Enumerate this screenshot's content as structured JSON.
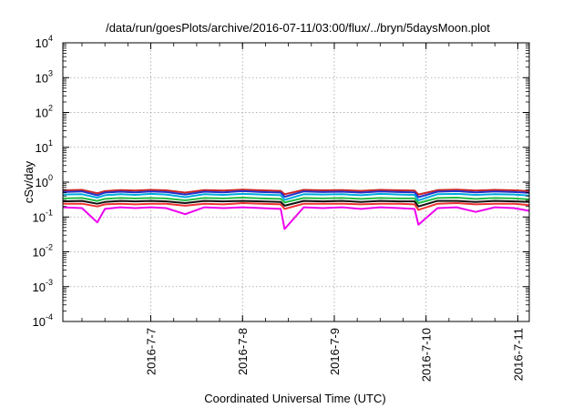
{
  "chart_data": {
    "type": "line",
    "title": "/data/run/goesPlots/archive/2016-07-11/03:00/flux/../bryn/5daysMoon.plot",
    "xlabel": "Coordinated Universal Time (UTC)",
    "ylabel": "cSv/day",
    "yscale": "log",
    "ylim": [
      0.0001,
      10000
    ],
    "xlim": [
      "2016-07-06T01:00",
      "2016-07-11T03:00"
    ],
    "grid": true,
    "y_ticks": [
      {
        "value": 0.0001,
        "base": "10",
        "exp": "-4"
      },
      {
        "value": 0.001,
        "base": "10",
        "exp": "-3"
      },
      {
        "value": 0.01,
        "base": "10",
        "exp": "-2"
      },
      {
        "value": 0.1,
        "base": "10",
        "exp": "-1"
      },
      {
        "value": 1,
        "base": "10",
        "exp": "0"
      },
      {
        "value": 10,
        "base": "10",
        "exp": "1"
      },
      {
        "value": 100,
        "base": "10",
        "exp": "2"
      },
      {
        "value": 1000,
        "base": "10",
        "exp": "3"
      },
      {
        "value": 10000,
        "base": "10",
        "exp": "4"
      }
    ],
    "x_ticks": [
      {
        "value": "2016-07-07T00:00",
        "label": "2016-7-7"
      },
      {
        "value": "2016-07-08T00:00",
        "label": "2016-7-8"
      },
      {
        "value": "2016-07-09T00:00",
        "label": "2016-7-9"
      },
      {
        "value": "2016-07-10T00:00",
        "label": "2016-7-10"
      },
      {
        "value": "2016-07-11T00:00",
        "label": "2016-7-11"
      }
    ],
    "x": [
      "2016-07-06T01:00",
      "2016-07-06T06:00",
      "2016-07-06T10:00",
      "2016-07-06T12:00",
      "2016-07-06T16:00",
      "2016-07-06T20:00",
      "2016-07-07T00:00",
      "2016-07-07T04:00",
      "2016-07-07T09:00",
      "2016-07-07T14:00",
      "2016-07-07T19:00",
      "2016-07-08T00:00",
      "2016-07-08T05:00",
      "2016-07-08T10:00",
      "2016-07-08T11:00",
      "2016-07-08T16:00",
      "2016-07-08T21:00",
      "2016-07-09T02:00",
      "2016-07-09T07:00",
      "2016-07-09T12:00",
      "2016-07-09T17:00",
      "2016-07-09T21:00",
      "2016-07-09T22:00",
      "2016-07-10T03:00",
      "2016-07-10T08:00",
      "2016-07-10T13:00",
      "2016-07-10T18:00",
      "2016-07-10T23:00",
      "2016-07-11T03:00"
    ],
    "series": [
      {
        "color": "#cc2222",
        "values": [
          0.58,
          0.6,
          0.48,
          0.55,
          0.59,
          0.57,
          0.6,
          0.58,
          0.5,
          0.59,
          0.57,
          0.61,
          0.58,
          0.56,
          0.45,
          0.6,
          0.58,
          0.59,
          0.56,
          0.6,
          0.58,
          0.57,
          0.44,
          0.59,
          0.61,
          0.57,
          0.6,
          0.58,
          0.55
        ]
      },
      {
        "color": "#2233cc",
        "values": [
          0.52,
          0.54,
          0.42,
          0.5,
          0.53,
          0.51,
          0.54,
          0.52,
          0.44,
          0.53,
          0.51,
          0.55,
          0.52,
          0.5,
          0.38,
          0.54,
          0.52,
          0.53,
          0.5,
          0.54,
          0.52,
          0.51,
          0.37,
          0.53,
          0.55,
          0.51,
          0.54,
          0.52,
          0.49
        ]
      },
      {
        "color": "#00aadd",
        "values": [
          0.44,
          0.45,
          0.36,
          0.42,
          0.45,
          0.43,
          0.46,
          0.44,
          0.37,
          0.45,
          0.43,
          0.46,
          0.44,
          0.42,
          0.31,
          0.45,
          0.44,
          0.45,
          0.42,
          0.46,
          0.44,
          0.43,
          0.3,
          0.45,
          0.46,
          0.43,
          0.45,
          0.44,
          0.41
        ]
      },
      {
        "color": "#22bb44",
        "values": [
          0.34,
          0.35,
          0.29,
          0.33,
          0.35,
          0.34,
          0.35,
          0.34,
          0.3,
          0.35,
          0.34,
          0.36,
          0.34,
          0.33,
          0.26,
          0.35,
          0.34,
          0.35,
          0.33,
          0.35,
          0.34,
          0.34,
          0.25,
          0.35,
          0.36,
          0.33,
          0.35,
          0.34,
          0.32
        ]
      },
      {
        "color": "#111111",
        "values": [
          0.28,
          0.29,
          0.24,
          0.27,
          0.29,
          0.28,
          0.29,
          0.28,
          0.25,
          0.29,
          0.28,
          0.29,
          0.28,
          0.27,
          0.21,
          0.29,
          0.28,
          0.29,
          0.27,
          0.29,
          0.28,
          0.28,
          0.2,
          0.29,
          0.29,
          0.27,
          0.29,
          0.28,
          0.27
        ]
      },
      {
        "color": "#ee3333",
        "values": [
          0.24,
          0.24,
          0.2,
          0.23,
          0.24,
          0.23,
          0.24,
          0.24,
          0.21,
          0.24,
          0.23,
          0.25,
          0.24,
          0.23,
          0.17,
          0.24,
          0.24,
          0.24,
          0.23,
          0.24,
          0.24,
          0.23,
          0.16,
          0.24,
          0.25,
          0.23,
          0.24,
          0.24,
          0.22
        ]
      },
      {
        "color": "#ee00ee",
        "values": [
          0.19,
          0.18,
          0.07,
          0.17,
          0.19,
          0.18,
          0.19,
          0.18,
          0.12,
          0.19,
          0.18,
          0.19,
          0.18,
          0.17,
          0.045,
          0.19,
          0.18,
          0.19,
          0.17,
          0.19,
          0.18,
          0.17,
          0.06,
          0.18,
          0.19,
          0.14,
          0.19,
          0.18,
          0.15
        ]
      }
    ]
  }
}
